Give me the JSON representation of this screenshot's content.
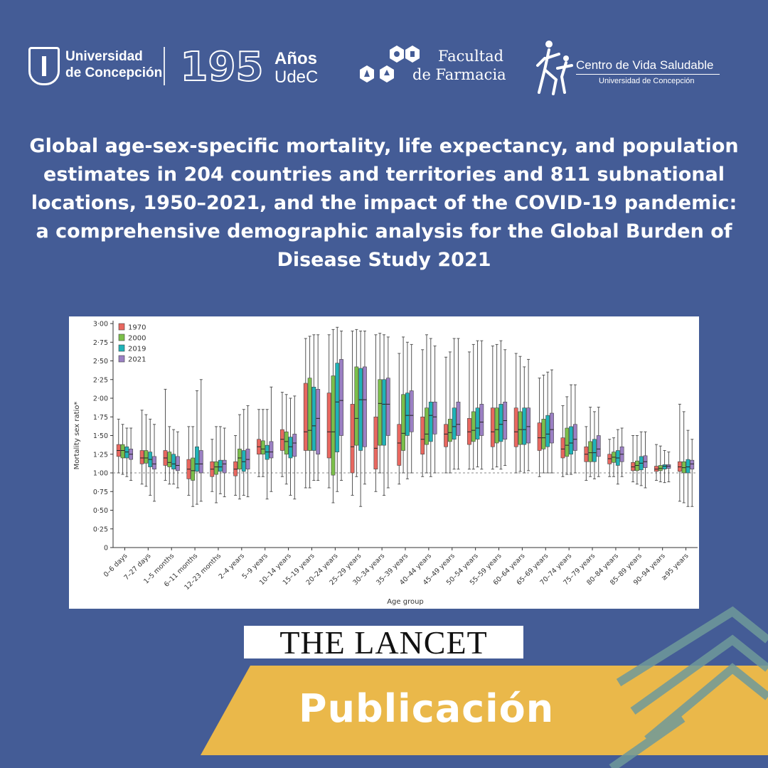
{
  "header": {
    "udec_line1": "Universidad",
    "udec_line2": "de Concepción",
    "anniversary_number": "195",
    "anos_label": "Años",
    "anos_sub": "UdeC",
    "farmacia_line1": "Facultad",
    "farmacia_line2": "de Farmacia",
    "cvs_title": "Centro de Vida Saludable",
    "cvs_sub": "Universidad de Concepción"
  },
  "publication_title": "Global age-sex-specific mortality, life expectancy, and population estimates in 204 countries and territories and 811 subnational locations, 1950–2021, and the impact of the COVID-19 pandemic: a comprehensive demographic analysis for the Global Burden of Disease Study 2021",
  "journal": "THE LANCET",
  "banner_label": "Publicación",
  "colors": {
    "background": "#445c96",
    "banner": "#eab84a",
    "decor": "#6f9a9a",
    "s1970": "#e8675f",
    "s2000": "#7bbf4a",
    "s2019": "#1fb3b8",
    "s2021": "#9b80c4"
  },
  "chart_data": {
    "type": "box",
    "xlabel": "Age group",
    "ylabel": "Mortality sex ratio*",
    "ylim": [
      0,
      3
    ],
    "yticks": [
      "0",
      "0·25",
      "0·50",
      "0·75",
      "1·00",
      "1·25",
      "1·50",
      "1·75",
      "2·00",
      "2·25",
      "2·50",
      "2·75",
      "3·00"
    ],
    "reference_line": 1.0,
    "legend_position": "top-left",
    "categories": [
      "0–6 days",
      "7–27 days",
      "1–5 months",
      "6–11 months",
      "12–23 months",
      "2–4 years",
      "5–9 years",
      "10–14 years",
      "15–19 years",
      "20–24 years",
      "25–29 years",
      "30–34 years",
      "35–39 years",
      "40–44 years",
      "45–49 years",
      "50–54 years",
      "55–59 years",
      "60–64 years",
      "65–69 years",
      "70–74 years",
      "75–79 years",
      "80–84 years",
      "85–89 years",
      "90–94 years",
      "≥95 years"
    ],
    "series": [
      {
        "name": "1970",
        "color": "#e8675f",
        "boxes": [
          [
            1.0,
            1.22,
            1.3,
            1.38,
            1.72
          ],
          [
            0.85,
            1.12,
            1.2,
            1.3,
            1.84
          ],
          [
            0.9,
            1.1,
            1.2,
            1.3,
            2.12
          ],
          [
            0.7,
            0.92,
            1.05,
            1.18,
            1.62
          ],
          [
            0.75,
            0.95,
            1.05,
            1.15,
            1.45
          ],
          [
            0.7,
            0.96,
            1.05,
            1.15,
            1.5
          ],
          [
            0.95,
            1.25,
            1.35,
            1.45,
            1.85
          ],
          [
            0.95,
            1.3,
            1.45,
            1.58,
            2.08
          ],
          [
            0.8,
            1.3,
            1.55,
            2.2,
            2.8
          ],
          [
            0.8,
            1.2,
            1.55,
            2.07,
            2.85
          ],
          [
            0.7,
            1.0,
            1.35,
            1.92,
            2.9
          ],
          [
            0.75,
            1.05,
            1.33,
            1.75,
            2.85
          ],
          [
            0.85,
            1.1,
            1.4,
            1.65,
            2.6
          ],
          [
            0.95,
            1.25,
            1.45,
            1.75,
            2.65
          ],
          [
            1.0,
            1.35,
            1.52,
            1.65,
            2.55
          ],
          [
            1.05,
            1.38,
            1.55,
            1.73,
            2.62
          ],
          [
            1.05,
            1.35,
            1.55,
            1.87,
            2.7
          ],
          [
            1.0,
            1.35,
            1.55,
            1.87,
            2.6
          ],
          [
            0.95,
            1.3,
            1.47,
            1.67,
            2.27
          ],
          [
            0.95,
            1.2,
            1.32,
            1.47,
            1.9
          ],
          [
            0.9,
            1.15,
            1.25,
            1.35,
            1.62
          ],
          [
            0.95,
            1.12,
            1.19,
            1.25,
            1.45
          ],
          [
            0.88,
            1.03,
            1.08,
            1.14,
            1.5
          ],
          [
            0.9,
            1.02,
            1.05,
            1.09,
            1.38
          ],
          [
            0.62,
            1.02,
            1.08,
            1.15,
            1.92
          ]
        ]
      },
      {
        "name": "2000",
        "color": "#7bbf4a",
        "boxes": [
          [
            0.98,
            1.2,
            1.3,
            1.38,
            1.65
          ],
          [
            0.82,
            1.13,
            1.2,
            1.3,
            1.78
          ],
          [
            0.85,
            1.08,
            1.14,
            1.28,
            1.62
          ],
          [
            0.55,
            0.9,
            1.03,
            1.2,
            1.62
          ],
          [
            0.6,
            0.98,
            1.08,
            1.15,
            1.62
          ],
          [
            0.65,
            1.05,
            1.2,
            1.32,
            1.78
          ],
          [
            0.95,
            1.25,
            1.32,
            1.43,
            1.85
          ],
          [
            0.85,
            1.25,
            1.42,
            1.55,
            2.05
          ],
          [
            0.8,
            1.3,
            1.57,
            2.27,
            2.83
          ],
          [
            0.6,
            0.97,
            1.55,
            2.3,
            2.92
          ],
          [
            0.95,
            1.37,
            1.73,
            2.42,
            2.92
          ],
          [
            1.0,
            1.37,
            1.93,
            2.25,
            2.87
          ],
          [
            1.0,
            1.3,
            1.53,
            2.05,
            2.82
          ],
          [
            1.0,
            1.38,
            1.52,
            1.87,
            2.85
          ],
          [
            1.0,
            1.42,
            1.54,
            1.72,
            2.62
          ],
          [
            1.05,
            1.42,
            1.57,
            1.82,
            2.72
          ],
          [
            1.08,
            1.4,
            1.58,
            1.87,
            2.72
          ],
          [
            1.02,
            1.38,
            1.58,
            1.82,
            2.56
          ],
          [
            1.0,
            1.32,
            1.47,
            1.72,
            2.31
          ],
          [
            0.98,
            1.22,
            1.37,
            1.6,
            2.02
          ],
          [
            0.95,
            1.15,
            1.27,
            1.42,
            1.88
          ],
          [
            0.95,
            1.14,
            1.21,
            1.28,
            1.47
          ],
          [
            0.85,
            1.03,
            1.1,
            1.16,
            1.5
          ],
          [
            0.88,
            1.03,
            1.06,
            1.1,
            1.36
          ],
          [
            0.6,
            1.0,
            1.07,
            1.15,
            1.82
          ]
        ]
      },
      {
        "name": "2019",
        "color": "#1fb3b8",
        "boxes": [
          [
            0.95,
            1.2,
            1.28,
            1.35,
            1.6
          ],
          [
            0.7,
            1.08,
            1.18,
            1.28,
            1.72
          ],
          [
            0.85,
            1.05,
            1.12,
            1.25,
            1.58
          ],
          [
            0.58,
            1.02,
            1.12,
            1.35,
            2.1
          ],
          [
            0.72,
            1.02,
            1.08,
            1.17,
            1.62
          ],
          [
            0.7,
            1.02,
            1.15,
            1.3,
            1.85
          ],
          [
            0.65,
            1.18,
            1.28,
            1.37,
            1.85
          ],
          [
            0.7,
            1.2,
            1.35,
            1.48,
            2.0
          ],
          [
            0.9,
            1.3,
            1.63,
            2.15,
            2.85
          ],
          [
            0.75,
            1.28,
            1.95,
            2.47,
            2.95
          ],
          [
            0.55,
            1.3,
            1.98,
            2.4,
            2.9
          ],
          [
            0.7,
            1.37,
            1.92,
            2.25,
            2.85
          ],
          [
            0.92,
            1.5,
            1.77,
            2.07,
            2.75
          ],
          [
            0.95,
            1.42,
            1.77,
            1.95,
            2.8
          ],
          [
            1.05,
            1.45,
            1.62,
            1.87,
            2.8
          ],
          [
            1.08,
            1.45,
            1.6,
            1.87,
            2.77
          ],
          [
            1.05,
            1.42,
            1.65,
            1.92,
            2.77
          ],
          [
            1.0,
            1.38,
            1.58,
            1.87,
            2.42
          ],
          [
            1.0,
            1.35,
            1.52,
            1.77,
            2.35
          ],
          [
            0.98,
            1.25,
            1.4,
            1.62,
            2.18
          ],
          [
            0.92,
            1.15,
            1.27,
            1.45,
            1.82
          ],
          [
            0.85,
            1.1,
            1.2,
            1.3,
            1.58
          ],
          [
            0.83,
            1.04,
            1.13,
            1.22,
            1.55
          ],
          [
            0.87,
            1.05,
            1.09,
            1.11,
            1.3
          ],
          [
            0.55,
            1.0,
            1.08,
            1.18,
            1.57
          ]
        ]
      },
      {
        "name": "2021",
        "color": "#9b80c4",
        "boxes": [
          [
            0.9,
            1.18,
            1.25,
            1.32,
            1.6
          ],
          [
            0.62,
            1.05,
            1.12,
            1.22,
            1.65
          ],
          [
            0.8,
            1.03,
            1.1,
            1.22,
            1.55
          ],
          [
            0.62,
            1.0,
            1.12,
            1.3,
            2.25
          ],
          [
            0.68,
            1.0,
            1.12,
            1.17,
            1.6
          ],
          [
            0.68,
            1.05,
            1.18,
            1.32,
            1.9
          ],
          [
            0.75,
            1.2,
            1.28,
            1.42,
            2.15
          ],
          [
            0.65,
            1.22,
            1.4,
            1.52,
            2.03
          ],
          [
            0.9,
            1.25,
            1.73,
            2.12,
            2.85
          ],
          [
            0.9,
            1.5,
            1.97,
            2.52,
            2.9
          ],
          [
            0.85,
            1.35,
            1.98,
            2.42,
            2.9
          ],
          [
            0.8,
            1.5,
            1.92,
            2.27,
            2.82
          ],
          [
            1.0,
            1.55,
            1.77,
            2.1,
            2.72
          ],
          [
            1.0,
            1.52,
            1.75,
            1.95,
            2.7
          ],
          [
            1.05,
            1.5,
            1.65,
            1.95,
            2.8
          ],
          [
            1.05,
            1.5,
            1.68,
            1.92,
            2.77
          ],
          [
            1.1,
            1.45,
            1.7,
            1.95,
            2.65
          ],
          [
            1.03,
            1.4,
            1.62,
            1.87,
            2.52
          ],
          [
            1.0,
            1.4,
            1.58,
            1.8,
            2.38
          ],
          [
            1.0,
            1.3,
            1.45,
            1.65,
            2.18
          ],
          [
            0.95,
            1.22,
            1.32,
            1.5,
            1.88
          ],
          [
            0.95,
            1.15,
            1.25,
            1.35,
            1.6
          ],
          [
            0.8,
            1.07,
            1.15,
            1.23,
            1.55
          ],
          [
            0.88,
            1.06,
            1.09,
            1.11,
            1.28
          ],
          [
            0.55,
            1.05,
            1.12,
            1.17,
            1.45
          ]
        ]
      }
    ]
  }
}
